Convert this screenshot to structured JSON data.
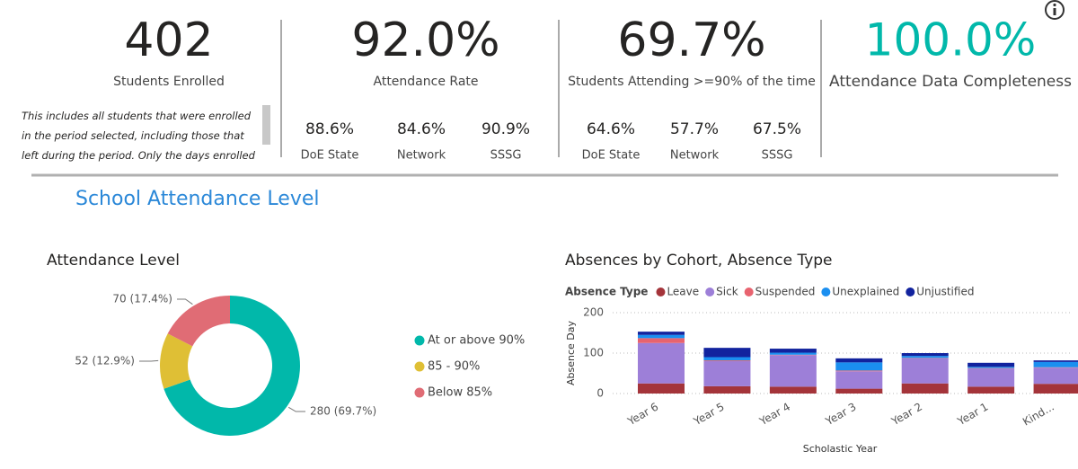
{
  "kpis": [
    {
      "value": "402",
      "label": "Students Enrolled"
    },
    {
      "value": "92.0%",
      "label": "Attendance Rate",
      "comparisons": [
        {
          "value": "88.6%",
          "label": "DoE State"
        },
        {
          "value": "84.6%",
          "label": "Network"
        },
        {
          "value": "90.9%",
          "label": "SSSG"
        }
      ]
    },
    {
      "value": "69.7%",
      "label": "Students Attending >=90% of the time",
      "comparisons": [
        {
          "value": "64.6%",
          "label": "DoE State"
        },
        {
          "value": "57.7%",
          "label": "Network"
        },
        {
          "value": "67.5%",
          "label": "SSSG"
        }
      ]
    },
    {
      "value": "100.0%",
      "label": "Attendance Data Completeness"
    }
  ],
  "note": "This includes all students that were enrolled in the period selected, including those that left during the period. Only the days enrolled are",
  "section_title": "School Attendance Level",
  "chart_data": [
    {
      "type": "donut",
      "title": "Attendance Level",
      "categories": [
        "At or above 90%",
        "85 - 90%",
        "Below 85%"
      ],
      "values": [
        280,
        52,
        70
      ],
      "value_labels": [
        "280 (69.7%)",
        "52 (12.9%)",
        "70 (17.4%)"
      ],
      "colors": [
        "#01b8aa",
        "#dfbf35",
        "#e06c75"
      ]
    },
    {
      "type": "stacked_bar",
      "title": "Absences by Cohort, Absence Type",
      "legend_title": "Absence Type",
      "x_label": "Scholastic Year",
      "y_label": "Absence Day",
      "categories": [
        "Year 6",
        "Year 5",
        "Year 4",
        "Year 3",
        "Year 2",
        "Year 1",
        "Kind..."
      ],
      "series": [
        {
          "name": "Leave",
          "color": "#a4343a",
          "values": [
            25,
            18,
            17,
            12,
            25,
            17,
            24
          ]
        },
        {
          "name": "Sick",
          "color": "#9d7fd8",
          "values": [
            100,
            62,
            78,
            43,
            62,
            45,
            40
          ]
        },
        {
          "name": "Suspended",
          "color": "#e8636f",
          "values": [
            12,
            2,
            1,
            2,
            1,
            1,
            1
          ]
        },
        {
          "name": "Unexplained",
          "color": "#1b8ff0",
          "values": [
            8,
            8,
            5,
            20,
            5,
            3,
            13
          ]
        },
        {
          "name": "Unjustified",
          "color": "#12239e",
          "values": [
            8,
            23,
            10,
            10,
            7,
            10,
            4
          ]
        }
      ],
      "ylim": [
        0,
        200
      ],
      "yticks": [
        0,
        100,
        200
      ],
      "grid": true
    }
  ]
}
